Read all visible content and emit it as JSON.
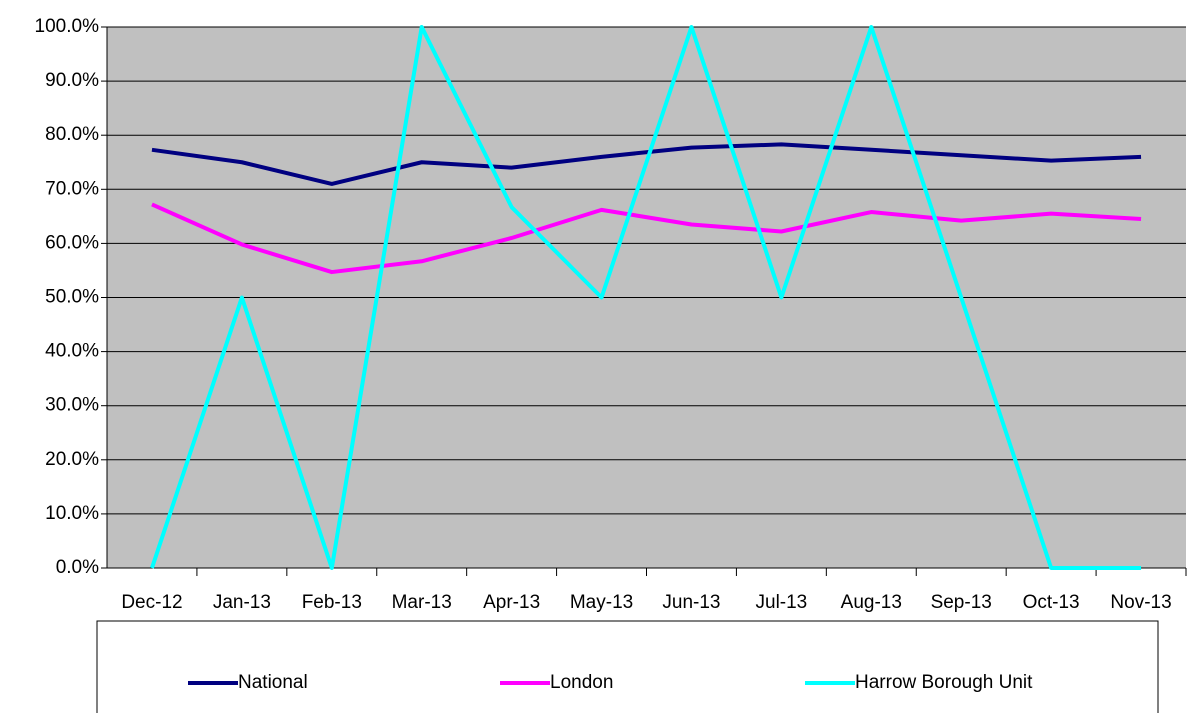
{
  "chart_data": {
    "type": "line",
    "categories": [
      "Dec-12",
      "Jan-13",
      "Feb-13",
      "Mar-13",
      "Apr-13",
      "May-13",
      "Jun-13",
      "Jul-13",
      "Aug-13",
      "Sep-13",
      "Oct-13",
      "Nov-13"
    ],
    "series": [
      {
        "name": "National",
        "color": "#000080",
        "values": [
          77.3,
          75,
          71,
          75,
          74,
          76,
          77.7,
          78.3,
          77.3,
          76.3,
          75.3,
          76
        ]
      },
      {
        "name": "London",
        "color": "#ff00ff",
        "values": [
          67.2,
          59.8,
          54.7,
          56.7,
          61,
          66.2,
          63.5,
          62.2,
          65.8,
          64.2,
          65.5,
          64.5
        ]
      },
      {
        "name": "Harrow Borough Unit",
        "color": "#00ffff",
        "values": [
          0,
          50,
          0,
          100,
          66.7,
          50,
          100,
          50,
          100,
          50,
          0,
          0
        ]
      }
    ],
    "ylim": [
      0,
      100
    ],
    "yticks": [
      {
        "value": 0,
        "label": "0.0%"
      },
      {
        "value": 10,
        "label": "10.0%"
      },
      {
        "value": 20,
        "label": "20.0%"
      },
      {
        "value": 30,
        "label": "30.0%"
      },
      {
        "value": 40,
        "label": "40.0%"
      },
      {
        "value": 50,
        "label": "50.0%"
      },
      {
        "value": 60,
        "label": "60.0%"
      },
      {
        "value": 70,
        "label": "70.0%"
      },
      {
        "value": 80,
        "label": "80.0%"
      },
      {
        "value": 90,
        "label": "90.0%"
      },
      {
        "value": 100,
        "label": "100.0%"
      }
    ],
    "grid": true,
    "legend": "bottom"
  }
}
